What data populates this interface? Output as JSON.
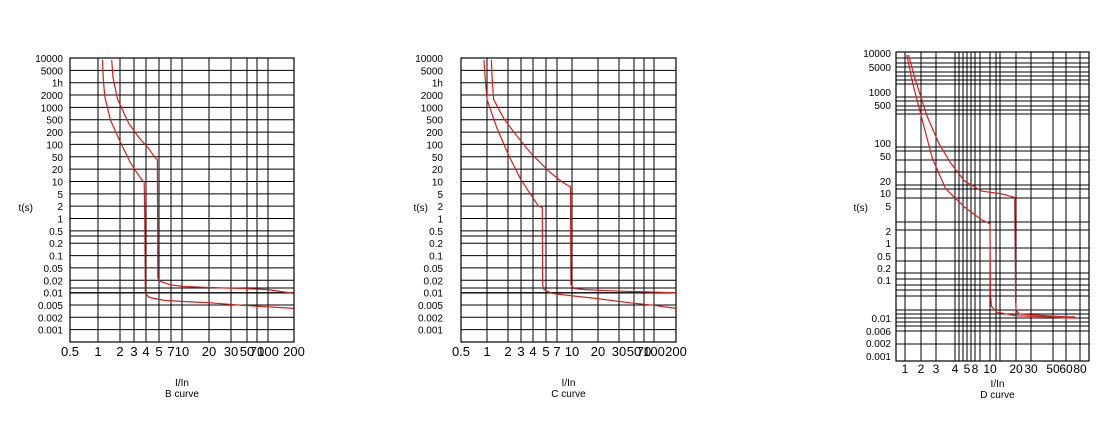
{
  "chart_data": [
    {
      "type": "line",
      "xlabel": "I/In",
      "subtitle": "B curve",
      "ylabel": "t(s)",
      "x_ticks": [
        "0.5",
        "1",
        "2",
        "3",
        "4",
        "5",
        "7",
        "10",
        "20",
        "30",
        "50",
        "70",
        "100",
        "200"
      ],
      "y_ticks": [
        "10000",
        "5000",
        "1h",
        "2000",
        "1000",
        "500",
        "200",
        "100",
        "50",
        "20",
        "10",
        "5",
        "2",
        "1",
        "0.5",
        "0.2",
        "0.1",
        "0.05",
        "0.02",
        "0.01",
        "0.005",
        "0.002",
        "0.001"
      ],
      "series": [
        {
          "x": [
            1.13,
            1.15,
            1.2,
            1.4,
            1.8,
            2.4,
            3.0,
            3.3,
            3.5,
            3.55,
            3.6,
            4.0,
            6,
            10,
            20,
            50,
            100,
            200
          ],
          "y": [
            10000,
            3600,
            1200,
            300,
            90,
            25,
            12,
            9,
            8,
            1,
            0.012,
            0.0095,
            0.008,
            0.0075,
            0.007,
            0.006,
            0.0055,
            0.005
          ]
        },
        {
          "x": [
            1.45,
            1.5,
            1.7,
            2.3,
            3.0,
            4.0,
            4.6,
            5.0,
            5.05,
            5.3,
            7,
            10,
            20,
            50,
            100,
            200
          ],
          "y": [
            10000,
            3600,
            1000,
            250,
            110,
            55,
            35,
            30,
            0.03,
            0.025,
            0.02,
            0.018,
            0.017,
            0.016,
            0.015,
            0.012
          ]
        }
      ]
    },
    {
      "type": "line",
      "xlabel": "I/In",
      "subtitle": "C curve",
      "ylabel": "t(s)",
      "x_ticks": [
        "0.5",
        "1",
        "2",
        "3",
        "4",
        "5",
        "7",
        "10",
        "20",
        "30",
        "50",
        "70",
        "100",
        "200"
      ],
      "y_ticks": [
        "10000",
        "5000",
        "1h",
        "2000",
        "1000",
        "500",
        "200",
        "100",
        "50",
        "20",
        "10",
        "5",
        "2",
        "1",
        "0.5",
        "0.2",
        "0.1",
        "0.05",
        "0.02",
        "0.01",
        "0.005",
        "0.002",
        "0.001"
      ],
      "series": [
        {
          "x": [
            0.92,
            0.95,
            1.0,
            1.3,
            1.8,
            2.5,
            3.3,
            4.1,
            4.6,
            4.65,
            4.8,
            6,
            10,
            20,
            50,
            100,
            200
          ],
          "y": [
            10000,
            3600,
            1000,
            200,
            40,
            10,
            4,
            2,
            1.8,
            0.02,
            0.015,
            0.012,
            0.0105,
            0.009,
            0.007,
            0.006,
            0.005
          ]
        },
        {
          "x": [
            1.13,
            1.15,
            1.2,
            1.6,
            2.2,
            3.3,
            5.5,
            8,
            10.0,
            10.1,
            11,
            15,
            30,
            100,
            200
          ],
          "y": [
            10000,
            3600,
            1000,
            320,
            130,
            45,
            15,
            8,
            6,
            0.02,
            0.016,
            0.015,
            0.014,
            0.013,
            0.0125
          ]
        }
      ]
    },
    {
      "type": "line",
      "xlabel": "I/In",
      "subtitle": "D curve",
      "ylabel": "t(s)",
      "x_ticks": [
        "1",
        "2",
        "3",
        "4",
        "5",
        "8",
        "10",
        "20",
        "30",
        "50",
        "60",
        "80"
      ],
      "y_ticks": [
        "10000",
        "5000",
        "1000",
        "500",
        "100",
        "50",
        "20",
        "10",
        "5",
        "2",
        "1",
        "0.5",
        "0.2",
        "0.1",
        "0.01",
        "0.006",
        "0.002",
        "0.001"
      ],
      "series": [
        {
          "x": [
            1.05,
            1.25,
            1.6,
            2.1,
            3.0,
            5,
            8,
            9.5,
            10.0,
            10.1,
            10.4,
            12,
            20,
            50,
            80,
            100
          ],
          "y": [
            10000,
            2000,
            300,
            40,
            8,
            3,
            1.5,
            1.3,
            1.2,
            0.03,
            0.015,
            0.011,
            0.009,
            0.0085,
            0.008,
            0.008
          ]
        },
        {
          "x": [
            1.1,
            1.3,
            1.8,
            2.5,
            3.5,
            5,
            8,
            14,
            19.5,
            20.0,
            20.3,
            22,
            30,
            50,
            80,
            100
          ],
          "y": [
            10000,
            3000,
            400,
            90,
            30,
            12,
            7,
            6,
            5,
            0.02,
            0.012,
            0.01,
            0.0095,
            0.009,
            0.0085,
            0.0085
          ]
        }
      ]
    }
  ]
}
